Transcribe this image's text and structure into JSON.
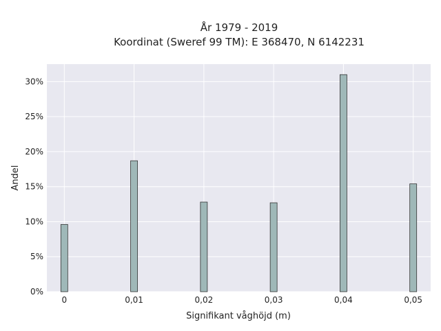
{
  "chart_data": {
    "type": "bar",
    "title_line1": "År 1979 - 2019",
    "title_line2": "Koordinat (Sweref 99 TM): E 368470, N 6142231",
    "xlabel": "Signifikant våghöjd (m)",
    "ylabel": "Andel",
    "x": [
      0,
      0.01,
      0.02,
      0.03,
      0.04,
      0.05
    ],
    "x_tick_labels": [
      "0",
      "0,01",
      "0,02",
      "0,03",
      "0,04",
      "0,05"
    ],
    "values": [
      9.6,
      18.7,
      12.8,
      12.7,
      31.0,
      15.4
    ],
    "y_tick_values": [
      0,
      5,
      10,
      15,
      20,
      25,
      30
    ],
    "y_tick_labels": [
      "0%",
      "5%",
      "10%",
      "15%",
      "20%",
      "25%",
      "30%"
    ],
    "xlim": [
      -0.0025,
      0.0525
    ],
    "ylim": [
      0,
      32.5
    ],
    "grid": true,
    "colors": {
      "plot_background": "#e8e8f0",
      "grid": "#ffffff",
      "bar_fill": "#9fb8b8",
      "bar_stroke": "#333333"
    }
  }
}
